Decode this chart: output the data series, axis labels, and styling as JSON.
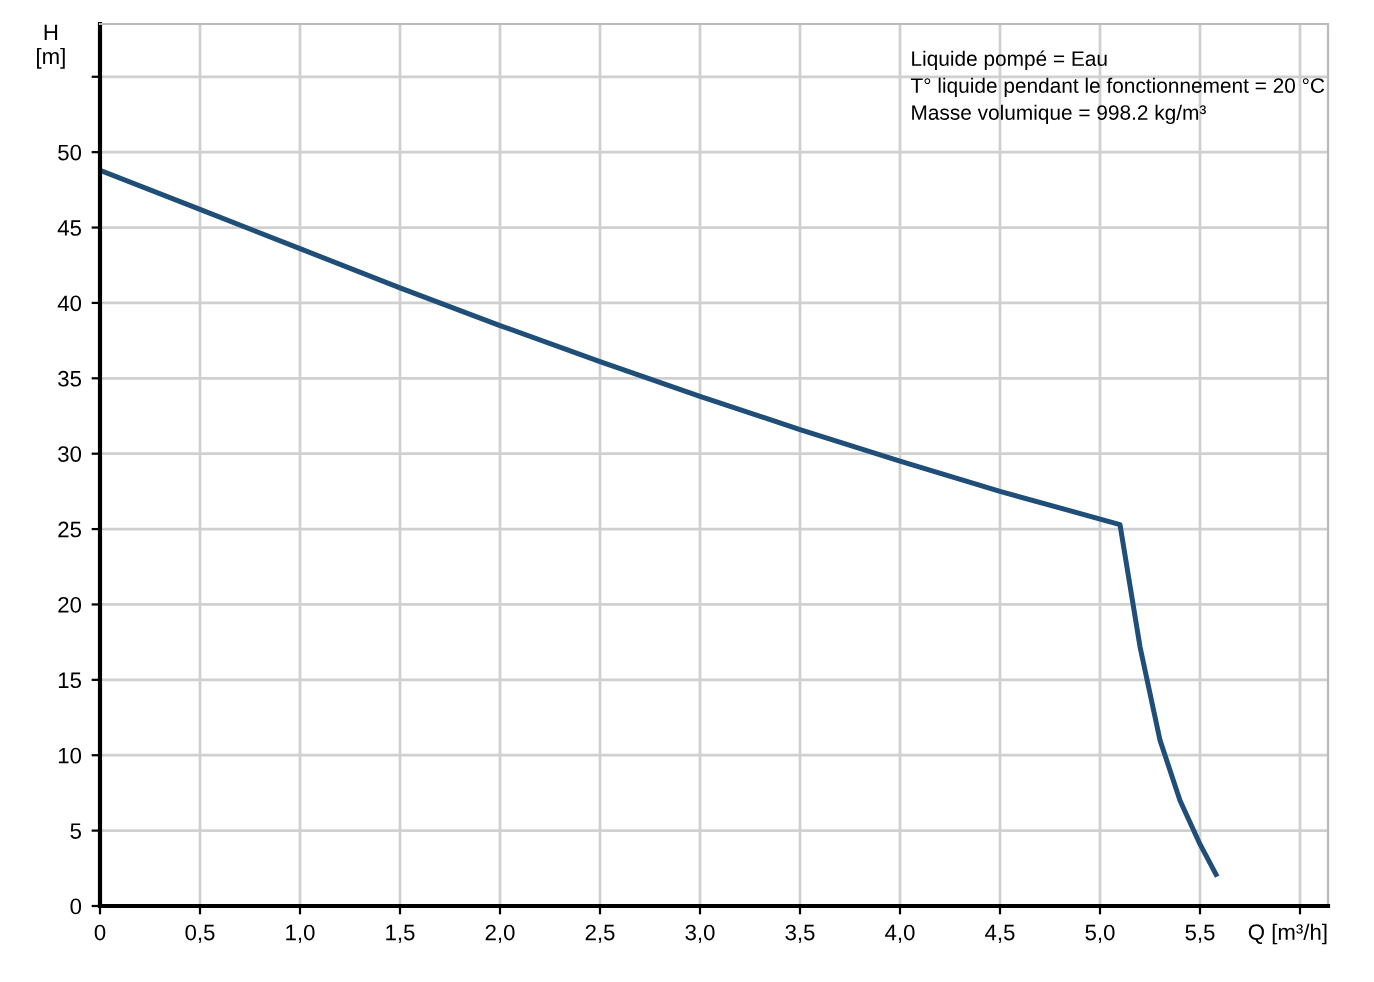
{
  "chart_data": {
    "type": "line",
    "xlabel": "Q [m³/h]",
    "ylabel": "H\n[m]",
    "annotations": [
      "Liquide pompé = Eau\nT° liquide pendant le fonctionnement = 20 °C\nMasse volumique = 998.2 kg/m³"
    ],
    "x": [
      0,
      0.5,
      1.0,
      1.5,
      2.0,
      2.5,
      3.0,
      3.5,
      4.0,
      4.5,
      5.1,
      5.2,
      5.3,
      5.4,
      5.5,
      5.58
    ],
    "series": [
      {
        "color": "#1f4e79",
        "values": [
          48.8,
          46.2,
          43.6,
          41.0,
          38.5,
          36.1,
          33.8,
          31.6,
          29.5,
          27.5,
          25.3,
          17.2,
          11.0,
          7.0,
          4.1,
          2.1
        ]
      }
    ],
    "xlim": [
      0,
      6.14
    ],
    "ylim": [
      0,
      58.5
    ],
    "xticks": [
      0,
      {
        "value": 0.5,
        "label": "0,5"
      },
      {
        "value": 1.0,
        "label": "1,0"
      },
      {
        "value": 1.5,
        "label": "1,5"
      },
      {
        "value": 2.0,
        "label": "2,0"
      },
      {
        "value": 2.5,
        "label": "2,5"
      },
      {
        "value": 3.0,
        "label": "3,0"
      },
      {
        "value": 3.5,
        "label": "3,5"
      },
      {
        "value": 4.0,
        "label": "4,0"
      },
      {
        "value": 4.5,
        "label": "4,5"
      },
      {
        "value": 5.0,
        "label": "5,0"
      },
      {
        "value": 5.5,
        "label": "5,5"
      },
      {
        "value": 6.0,
        "label": null
      }
    ],
    "yticks": [
      0,
      5,
      10,
      15,
      20,
      25,
      30,
      35,
      40,
      45,
      50,
      {
        "value": 55,
        "label": null
      }
    ],
    "grid": true,
    "marker": "none",
    "line_style": "solid"
  }
}
